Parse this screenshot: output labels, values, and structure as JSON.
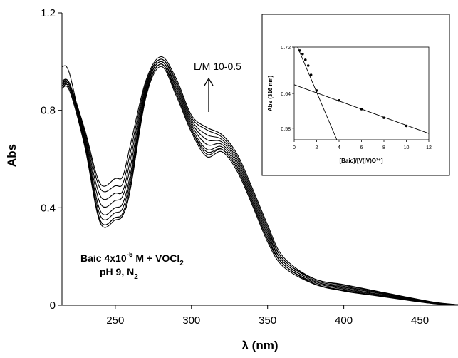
{
  "chart_data": [
    {
      "type": "line",
      "xlabel": "λ (nm)",
      "ylabel": "Abs",
      "xlim": [
        215,
        475
      ],
      "ylim": [
        0,
        1.2
      ],
      "x_ticks": [
        250,
        300,
        350,
        400,
        450
      ],
      "y_ticks": [
        {
          "value": 0,
          "label": "0"
        },
        {
          "value": 0.4,
          "label": "0.4"
        },
        {
          "value": 0.8,
          "label": "0.8"
        },
        {
          "value": 1.2,
          "label": "1.2"
        }
      ],
      "arrow_label": "L/M 10-0.5",
      "annotation": {
        "line1_prefix": "Baic 4x10",
        "line1_sup": "-5",
        "line1_mid": " M + VOCl",
        "line1_sub": "2",
        "line2_prefix": "pH 9, N",
        "line2_sub": "2"
      },
      "x": [
        215,
        220,
        230,
        240,
        250,
        255,
        260,
        270,
        280,
        290,
        300,
        310,
        320,
        330,
        340,
        350,
        360,
        380,
        400,
        420,
        440,
        460,
        475
      ],
      "series": [
        {
          "values": [
            0.92,
            0.91,
            0.72,
            0.5,
            0.52,
            0.53,
            0.66,
            0.92,
            1.02,
            0.93,
            0.78,
            0.73,
            0.7,
            0.62,
            0.48,
            0.33,
            0.2,
            0.11,
            0.085,
            0.06,
            0.035,
            0.012,
            0.002
          ]
        },
        {
          "values": [
            0.92,
            0.91,
            0.71,
            0.48,
            0.49,
            0.5,
            0.63,
            0.91,
            1.01,
            0.92,
            0.77,
            0.72,
            0.69,
            0.61,
            0.47,
            0.32,
            0.19,
            0.11,
            0.082,
            0.058,
            0.034,
            0.011,
            0.002
          ]
        },
        {
          "values": [
            0.91,
            0.91,
            0.7,
            0.45,
            0.46,
            0.47,
            0.6,
            0.9,
            1.01,
            0.91,
            0.76,
            0.7,
            0.68,
            0.6,
            0.46,
            0.31,
            0.19,
            0.105,
            0.078,
            0.055,
            0.032,
            0.01,
            0.002
          ]
        },
        {
          "values": [
            0.91,
            0.9,
            0.69,
            0.42,
            0.43,
            0.45,
            0.57,
            0.89,
            1.0,
            0.9,
            0.75,
            0.68,
            0.67,
            0.59,
            0.45,
            0.3,
            0.18,
            0.1,
            0.074,
            0.052,
            0.03,
            0.01,
            0.002
          ]
        },
        {
          "values": [
            0.9,
            0.9,
            0.68,
            0.39,
            0.4,
            0.42,
            0.54,
            0.88,
            1.0,
            0.89,
            0.74,
            0.66,
            0.66,
            0.58,
            0.44,
            0.29,
            0.18,
            0.1,
            0.07,
            0.048,
            0.028,
            0.009,
            0.002
          ]
        },
        {
          "values": [
            0.9,
            0.89,
            0.67,
            0.37,
            0.38,
            0.4,
            0.52,
            0.87,
            0.99,
            0.88,
            0.73,
            0.64,
            0.65,
            0.57,
            0.43,
            0.28,
            0.17,
            0.095,
            0.066,
            0.045,
            0.026,
            0.008,
            0.002
          ]
        },
        {
          "values": [
            0.89,
            0.89,
            0.66,
            0.35,
            0.36,
            0.38,
            0.5,
            0.86,
            0.99,
            0.87,
            0.72,
            0.63,
            0.64,
            0.56,
            0.42,
            0.27,
            0.17,
            0.09,
            0.062,
            0.042,
            0.024,
            0.007,
            0.002
          ]
        },
        {
          "values": [
            0.89,
            0.88,
            0.65,
            0.34,
            0.35,
            0.37,
            0.48,
            0.85,
            0.98,
            0.86,
            0.71,
            0.61,
            0.63,
            0.55,
            0.41,
            0.26,
            0.16,
            0.088,
            0.058,
            0.04,
            0.022,
            0.006,
            0.002
          ]
        },
        {
          "values": [
            0.98,
            0.95,
            0.66,
            0.35,
            0.36,
            0.37,
            0.48,
            0.86,
            0.99,
            0.87,
            0.72,
            0.62,
            0.64,
            0.56,
            0.42,
            0.27,
            0.17,
            0.09,
            0.06,
            0.041,
            0.023,
            0.006,
            0.002
          ]
        }
      ]
    },
    {
      "type": "scatter",
      "xlabel": "[Baic]/[V(IV)O²⁺]",
      "ylabel": "Abs (316 nm)",
      "xlim": [
        0,
        12
      ],
      "ylim": [
        0.56,
        0.72
      ],
      "x_ticks": [
        0,
        2,
        4,
        6,
        8,
        10,
        12
      ],
      "y_ticks": [
        {
          "value": 0.58,
          "label": "0.58"
        },
        {
          "value": 0.64,
          "label": "0.64"
        },
        {
          "value": 0.72,
          "label": "0.72"
        }
      ],
      "points": [
        {
          "x": 0.5,
          "y": 0.714
        },
        {
          "x": 0.75,
          "y": 0.708
        },
        {
          "x": 1.0,
          "y": 0.698
        },
        {
          "x": 1.25,
          "y": 0.688
        },
        {
          "x": 1.5,
          "y": 0.672
        },
        {
          "x": 2.0,
          "y": 0.645
        },
        {
          "x": 4.0,
          "y": 0.628
        },
        {
          "x": 6.0,
          "y": 0.613
        },
        {
          "x": 8.0,
          "y": 0.598
        },
        {
          "x": 10.0,
          "y": 0.584
        }
      ],
      "fit_lines": [
        {
          "x": [
            0.3,
            3.8
          ],
          "y": [
            0.72,
            0.56
          ]
        },
        {
          "x": [
            0,
            12
          ],
          "y": [
            0.655,
            0.571
          ]
        }
      ]
    }
  ]
}
